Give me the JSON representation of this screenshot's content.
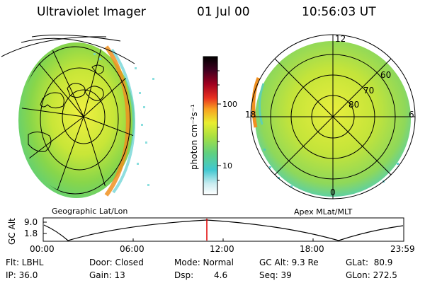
{
  "header": {
    "title": "Ultraviolet Imager",
    "date": "01 Jul 00",
    "time": "10:56:03 UT"
  },
  "panels": {
    "left_caption": "Geographic Lat/Lon",
    "right_caption": "Apex MLat/MLT"
  },
  "colorbar": {
    "label": "photon cm⁻²s⁻¹",
    "ticks": [
      "100",
      "10"
    ],
    "scale": "log"
  },
  "polar_plot": {
    "mlt_labels": [
      "12",
      "18",
      "6",
      "0"
    ],
    "mlat_labels": [
      "60",
      "70",
      "80"
    ]
  },
  "altitude_plot": {
    "ylabel": "GC Alt",
    "y_ticks": [
      "9.0",
      "1.8"
    ],
    "x_ticks": [
      "00:00",
      "06:00",
      "12:00",
      "18:00",
      "23:59"
    ],
    "marker_color": "#e00000"
  },
  "info": {
    "flt": "Flt: LBHL",
    "ip": "IP: 36.0",
    "door": "Door: Closed",
    "gain": "Gain: 13",
    "mode": "Mode: Normal",
    "dsp_label": "Dsp:",
    "dsp_value": "4.6",
    "gcalt": "GC Alt: 9.3 Re",
    "seq": "Seq: 39",
    "glat": "GLat:  80.9",
    "glon": "GLon: 272.5"
  }
}
